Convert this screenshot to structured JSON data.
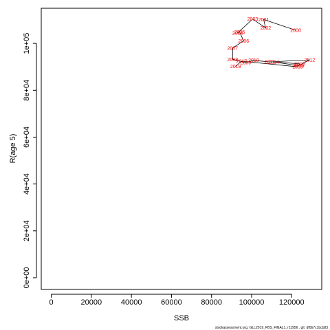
{
  "chart_data": {
    "type": "line",
    "xlabel": "SSB",
    "ylabel": "R(age 5)",
    "xlim": [
      -5000,
      135000
    ],
    "ylim": [
      -5000,
      115000
    ],
    "x_ticks": [
      0,
      20000,
      40000,
      60000,
      80000,
      100000,
      120000
    ],
    "x_tick_labels": [
      "0",
      "20000",
      "40000",
      "60000",
      "80000",
      "100000",
      "120000"
    ],
    "y_ticks": [
      0,
      20000,
      40000,
      60000,
      80000,
      100000
    ],
    "y_tick_labels": [
      "0e+00",
      "2e+04",
      "4e+04",
      "6e+04",
      "8e+04",
      "1e+05"
    ],
    "grid": false,
    "line_color": "#000000",
    "label_color": "#ff0000",
    "points": [
      {
        "year": "2000",
        "x": 122000,
        "y": 105600
      },
      {
        "year": "2001",
        "x": 106000,
        "y": 110200
      },
      {
        "year": "2002",
        "x": 107000,
        "y": 106600
      },
      {
        "year": "2003",
        "x": 100500,
        "y": 110400
      },
      {
        "year": "2004",
        "x": 93000,
        "y": 104500
      },
      {
        "year": "2005",
        "x": 94000,
        "y": 104900
      },
      {
        "year": "2006",
        "x": 96000,
        "y": 101100
      },
      {
        "year": "2007",
        "x": 90500,
        "y": 98000
      },
      {
        "year": "2008",
        "x": 90500,
        "y": 93200
      },
      {
        "year": "2009",
        "x": 97000,
        "y": 91800
      },
      {
        "year": "2010",
        "x": 101000,
        "y": 92800
      },
      {
        "year": "2011",
        "x": 109000,
        "y": 92100
      },
      {
        "year": "2012",
        "x": 129000,
        "y": 93000
      },
      {
        "year": "2013",
        "x": 123500,
        "y": 90500
      },
      {
        "year": "2014",
        "x": 111000,
        "y": 92100
      },
      {
        "year": "2015",
        "x": 124000,
        "y": 91300
      },
      {
        "year": "2016",
        "x": 123000,
        "y": 90000
      },
      {
        "year": "2017",
        "x": 95000,
        "y": 92400
      },
      {
        "year": "2018",
        "x": 92000,
        "y": 90200
      }
    ],
    "footer": "stockassessment.org,  GLL2019_FBS_FINAL1,  r11956 ,  git:  df0b7c1bcb83"
  }
}
